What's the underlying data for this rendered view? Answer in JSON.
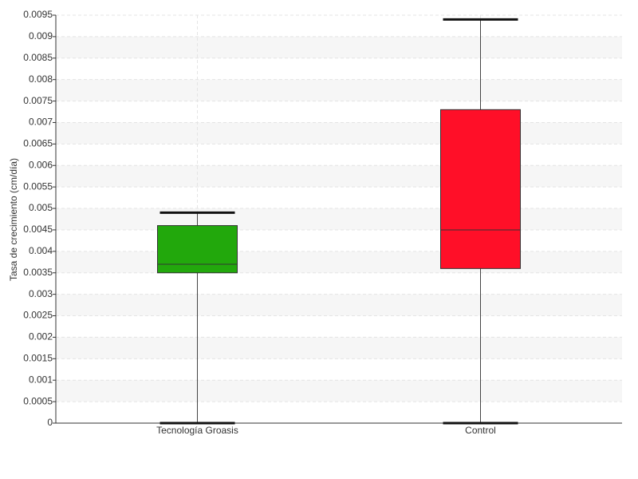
{
  "chart_data": {
    "type": "box",
    "y_label": "Tasa de crecimiento (cm/día)",
    "categories": [
      "Tecnología Groasis",
      "Control"
    ],
    "boxes": [
      {
        "min": 0,
        "q1": 0.0035,
        "median": 0.0037,
        "q3": 0.0046,
        "max": 0.0049,
        "color": "#22a80c"
      },
      {
        "min": 0,
        "q1": 0.0036,
        "median": 0.0045,
        "q3": 0.0073,
        "max": 0.0094,
        "color": "#ff0f28"
      }
    ],
    "ylim": [
      0,
      0.0095
    ],
    "yticks": [
      0,
      0.0005,
      0.001,
      0.0015,
      0.002,
      0.0025,
      0.003,
      0.0035,
      0.004,
      0.0045,
      0.005,
      0.0055,
      0.006,
      0.0065,
      0.007,
      0.0075,
      0.008,
      0.0085,
      0.009,
      0.0095
    ],
    "grid": true
  }
}
